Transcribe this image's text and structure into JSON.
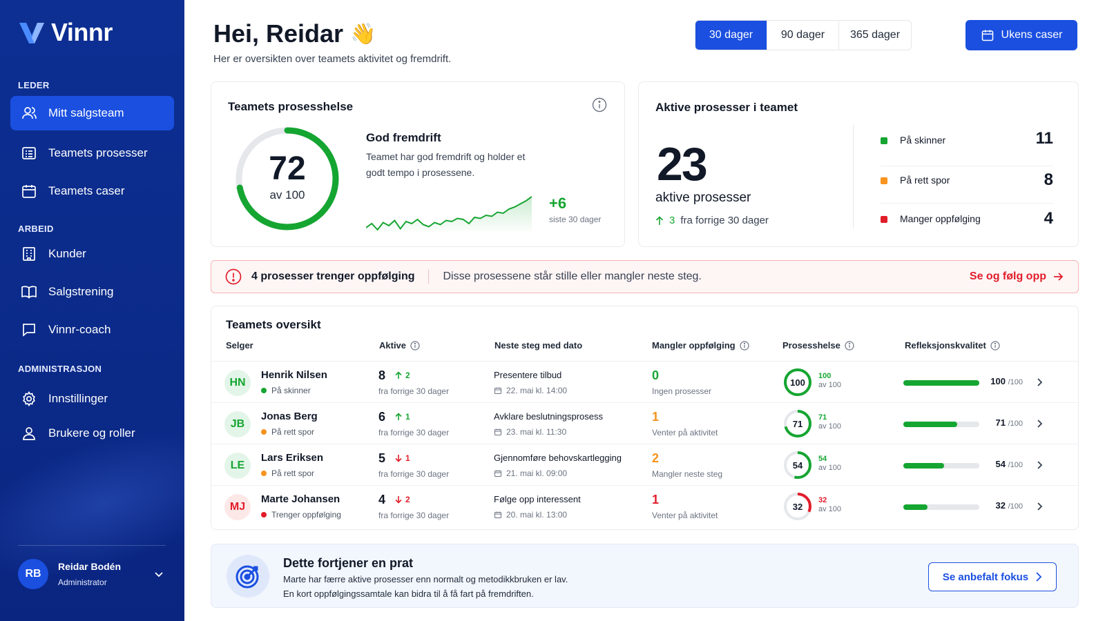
{
  "brand": {
    "name": "Vinnr",
    "color": "#1a4fe0"
  },
  "sidebar": {
    "sections": [
      {
        "label": "LEDER",
        "items": [
          {
            "label": "Mitt salgsteam",
            "icon": "users-icon",
            "active": true
          },
          {
            "label": "Teamets prosesser",
            "icon": "list-icon"
          },
          {
            "label": "Teamets caser",
            "icon": "calendar-icon"
          }
        ]
      },
      {
        "label": "ARBEID",
        "items": [
          {
            "label": "Kunder",
            "icon": "building-icon"
          },
          {
            "label": "Salgstrening",
            "icon": "book-icon"
          },
          {
            "label": "Vinnr-coach",
            "icon": "chat-icon"
          }
        ]
      },
      {
        "label": "ADMINISTRASJON",
        "items": [
          {
            "label": "Innstillinger",
            "icon": "gear-icon"
          },
          {
            "label": "Brukere og roller",
            "icon": "user-icon"
          }
        ]
      }
    ],
    "user": {
      "initials": "RB",
      "name": "Reidar Bodén",
      "role": "Administrator"
    }
  },
  "header": {
    "greeting": "Hei, Reidar",
    "wave": "👋",
    "subtitle": "Her er oversikten over teamets aktivitet og fremdrift.",
    "ranges": [
      "30 dager",
      "90 dager",
      "365 dager"
    ],
    "selected_range": "30 dager",
    "cases_button": "Ukens caser"
  },
  "health": {
    "title": "Teamets prosesshelse",
    "score": "72",
    "score_value": 72,
    "score_max": "av 100",
    "status_title": "God fremdrift",
    "status_text": "Teamet har god fremdrift og holder et godt tempo i prosessene.",
    "delta": "+6",
    "delta_label": "siste 30 dager",
    "trend": [
      40,
      44,
      38,
      45,
      42,
      47,
      39,
      46,
      44,
      48,
      43,
      41,
      45,
      43,
      47,
      46,
      49,
      48,
      44,
      50,
      49,
      52,
      51,
      55,
      54,
      58,
      60,
      63,
      66,
      70
    ]
  },
  "active": {
    "title": "Aktive prosesser i teamet",
    "count": "23",
    "label": "aktive prosesser",
    "delta": "3",
    "delta_label": "fra forrige 30 dager",
    "breakdown": [
      {
        "label": "På skinner",
        "value": "11",
        "color": "#15a531"
      },
      {
        "label": "På rett spor",
        "value": "8",
        "color": "#f7931e"
      },
      {
        "label": "Manger oppfølging",
        "value": "4",
        "color": "#e11d2a"
      }
    ]
  },
  "alert": {
    "title": "4 prosesser trenger oppfølging",
    "text": "Disse prosessene står stille eller mangler neste steg.",
    "link": "Se og følg opp",
    "color": "#e11d2a"
  },
  "overview": {
    "title": "Teamets oversikt",
    "columns": [
      "Selger",
      "Aktive",
      "Neste steg med dato",
      "Mangler oppfølging",
      "Prosesshelse",
      "Refleksjonskvalitet"
    ],
    "rows": [
      {
        "initials": "HN",
        "name": "Henrik Nilsen",
        "status": "På skinner",
        "status_color": "#15a531",
        "avatar_bg": "#e3f5e8",
        "avatar_fg": "#15a531",
        "active": "8",
        "dir": "up",
        "delta": "2",
        "delta_label": "fra forrige 30 dager",
        "step": "Presentere tilbud",
        "date": "22. mai kl. 14:00",
        "missing": "0",
        "missing_color": "#15a531",
        "missing_label": "Ingen prosesser",
        "health": "100",
        "health_value": 100,
        "health_color": "#15a531",
        "health_max": "av 100",
        "reflection": "100",
        "reflection_value": 100,
        "reflection_max": "/100"
      },
      {
        "initials": "JB",
        "name": "Jonas Berg",
        "status": "På rett spor",
        "status_color": "#f7931e",
        "avatar_bg": "#e3f5e8",
        "avatar_fg": "#15a531",
        "active": "6",
        "dir": "up",
        "delta": "1",
        "delta_label": "fra forrige 30 dager",
        "step": "Avklare beslutningsprosess",
        "date": "23. mai kl. 11:30",
        "missing": "1",
        "missing_color": "#f7931e",
        "missing_label": "Venter på aktivitet",
        "health": "71",
        "health_value": 71,
        "health_color": "#15a531",
        "health_max": "av 100",
        "reflection": "71",
        "reflection_value": 71,
        "reflection_max": "/100"
      },
      {
        "initials": "LE",
        "name": "Lars Eriksen",
        "status": "På rett spor",
        "status_color": "#f7931e",
        "avatar_bg": "#e3f5e8",
        "avatar_fg": "#15a531",
        "active": "5",
        "dir": "down",
        "delta": "1",
        "delta_label": "fra forrige 30 dager",
        "step": "Gjennomføre behovskartlegging",
        "date": "21. mai kl. 09:00",
        "missing": "2",
        "missing_color": "#f7931e",
        "missing_label": "Mangler neste steg",
        "health": "54",
        "health_value": 54,
        "health_color": "#15a531",
        "health_max": "av 100",
        "reflection": "54",
        "reflection_value": 54,
        "reflection_max": "/100"
      },
      {
        "initials": "MJ",
        "name": "Marte Johansen",
        "status": "Trenger oppfølging",
        "status_color": "#e11d2a",
        "avatar_bg": "#fde8e8",
        "avatar_fg": "#e11d2a",
        "active": "4",
        "dir": "down",
        "delta": "2",
        "delta_label": "fra forrige 30 dager",
        "step": "Følge opp interessent",
        "date": "20. mai kl. 13:00",
        "missing": "1",
        "missing_color": "#e11d2a",
        "missing_label": "Venter på aktivitet",
        "health": "32",
        "health_value": 32,
        "health_color": "#e11d2a",
        "health_max": "av 100",
        "reflection": "32",
        "reflection_value": 32,
        "reflection_max": "/100"
      }
    ]
  },
  "tip": {
    "title": "Dette fortjener en prat",
    "line1": "Marte har færre aktive prosesser enn normalt og metodikkbruken er lav.",
    "line2": "En kort oppfølgingssamtale kan bidra til å få fart på fremdriften.",
    "button": "Se anbefalt fokus"
  }
}
